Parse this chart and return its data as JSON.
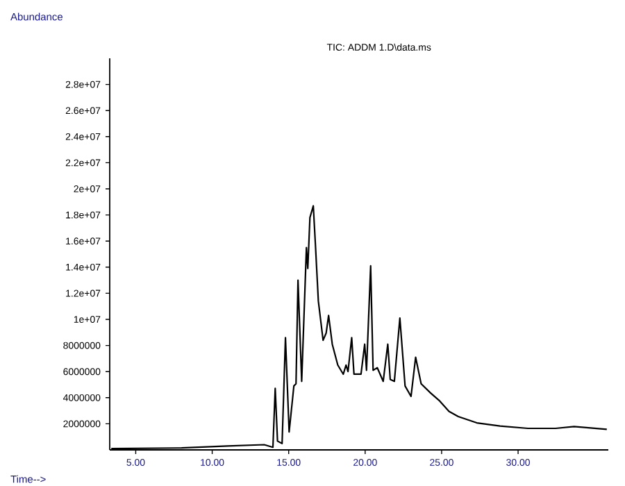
{
  "chart_data": {
    "type": "line",
    "title": "TIC: ADDM 1.D\\data.ms",
    "xlabel": "Time-->",
    "ylabel": "Abundance",
    "xlim": [
      3.3,
      35.9
    ],
    "ylim": [
      0,
      30000000
    ],
    "xticks": [
      {
        "value": 5,
        "label": "5.00"
      },
      {
        "value": 10,
        "label": "10.00"
      },
      {
        "value": 15,
        "label": "15.00"
      },
      {
        "value": 20,
        "label": "20.00"
      },
      {
        "value": 25,
        "label": "25.00"
      },
      {
        "value": 30,
        "label": "30.00"
      }
    ],
    "yticks": [
      2000000,
      4000000,
      6000000,
      8000000,
      {
        "value": 10000000,
        "label": "1e+07"
      },
      {
        "value": 12000000,
        "label": "1.2e+07"
      },
      {
        "value": 14000000,
        "label": "1.4e+07"
      },
      {
        "value": 16000000,
        "label": "1.6e+07"
      },
      {
        "value": 18000000,
        "label": "1.8e+07"
      },
      {
        "value": 20000000,
        "label": "2e+07"
      },
      {
        "value": 22000000,
        "label": "2.2e+07"
      },
      {
        "value": 24000000,
        "label": "2.4e+07"
      },
      {
        "value": 26000000,
        "label": "2.6e+07"
      },
      {
        "value": 28000000,
        "label": "2.8e+07"
      }
    ],
    "series": [
      {
        "color": "#000000",
        "x": [
          3.4,
          8,
          11,
          13.4,
          13.97,
          14.12,
          14.27,
          14.57,
          14.79,
          15.03,
          15.34,
          15.48,
          15.61,
          15.85,
          16.16,
          16.25,
          16.39,
          16.61,
          16.75,
          16.94,
          17.25,
          17.45,
          17.61,
          17.85,
          18.21,
          18.57,
          18.75,
          18.88,
          19.12,
          19.27,
          19.73,
          19.97,
          20.09,
          20.36,
          20.52,
          20.79,
          21.18,
          21.48,
          21.64,
          21.91,
          22.27,
          22.61,
          23.0,
          23.3,
          23.66,
          24.27,
          24.88,
          25.48,
          26.09,
          27.3,
          28.82,
          30.64,
          32.45,
          33.66,
          35.8
        ],
        "values": [
          100000,
          150000,
          300000,
          400000,
          200000,
          4720000,
          670000,
          490000,
          8600000,
          1370000,
          4900000,
          5070000,
          13000000,
          5250000,
          15500000,
          13900000,
          17800000,
          18700000,
          15700000,
          11400000,
          8400000,
          8950000,
          10300000,
          8100000,
          6500000,
          5800000,
          6500000,
          6000000,
          8600000,
          5800000,
          5800000,
          8100000,
          6100000,
          14100000,
          6100000,
          6300000,
          5250000,
          8100000,
          5400000,
          5250000,
          10100000,
          4900000,
          4100000,
          7100000,
          5070000,
          4370000,
          3740000,
          2950000,
          2550000,
          2070000,
          1830000,
          1650000,
          1650000,
          1790000,
          1580000
        ]
      }
    ]
  }
}
